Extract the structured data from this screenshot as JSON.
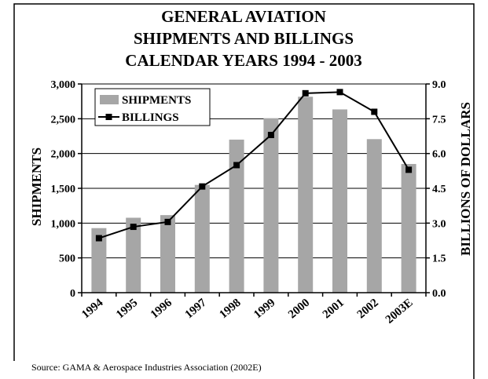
{
  "chart_data": {
    "type": "bar",
    "title_lines": [
      "GENERAL AVIATION",
      "SHIPMENTS AND BILLINGS",
      "CALENDAR YEARS 1994 - 2003"
    ],
    "categories": [
      "1994",
      "1995",
      "1996",
      "1997",
      "1998",
      "1999",
      "2000",
      "2001",
      "2002",
      "2003E"
    ],
    "series": [
      {
        "name": "SHIPMENTS",
        "type": "bar",
        "axis": "left",
        "color": "#a6a6a6",
        "values": [
          928,
          1077,
          1115,
          1549,
          2200,
          2504,
          2816,
          2634,
          2207,
          1850
        ]
      },
      {
        "name": "BILLINGS",
        "type": "line",
        "axis": "right",
        "color": "#000000",
        "values": [
          2.35,
          2.84,
          3.05,
          4.58,
          5.5,
          6.8,
          8.6,
          8.65,
          7.8,
          5.3
        ]
      }
    ],
    "ylabel_left": "SHIPMENTS",
    "ylabel_right": "BILLIONS OF DOLLARS",
    "ylim_left": [
      0,
      3000
    ],
    "ylim_right": [
      0,
      9
    ],
    "yticks_left": [
      "0",
      "500",
      "1,000",
      "1,500",
      "2,000",
      "2,500",
      "3,000"
    ],
    "yticks_right": [
      "0.0",
      "1.5",
      "3.0",
      "4.5",
      "6.0",
      "7.5",
      "9.0"
    ],
    "grid": "horizontal",
    "legend_position": "top-left"
  },
  "source_text": "Source: GAMA & Aerospace Industries Association (2002E)"
}
